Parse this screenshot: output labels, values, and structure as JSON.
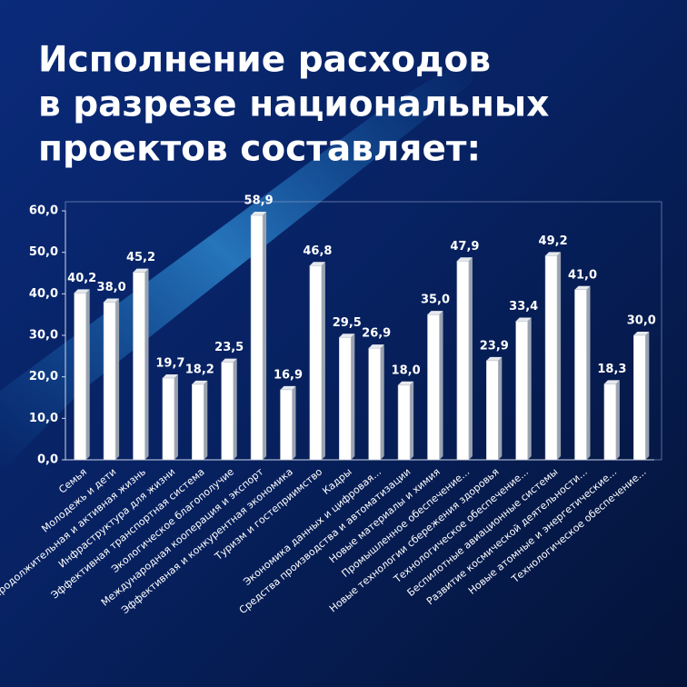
{
  "chart_data": {
    "type": "bar",
    "title": [
      "Исполнение расходов",
      "в разрезе национальных",
      "проектов составляет:"
    ],
    "categories": [
      "Семья",
      "Молодежь и дети",
      "Продолжительная и активная жизнь",
      "Инфраструктура для жизни",
      "Эффективная транспортная система",
      "Экологическое благополучие",
      "Международная кооперация и экспорт",
      "Эффективная и конкурентная экономика",
      "Туризм и гостеприимство",
      "Кадры",
      "Экономика данных и цифровая...",
      "Средства производства и автоматизации",
      "Новые материалы и химия",
      "Промышленное обеспечение...",
      "Новые технологии сбережения здоровья",
      "Технологическое обеспечение...",
      "Беспилотные авиационные системы",
      "Развитие космической деятельности...",
      "Новые атомные и энергетические...",
      "Технологическое обеспечение..."
    ],
    "values": [
      40.2,
      38.0,
      45.2,
      19.7,
      18.2,
      23.5,
      58.9,
      16.9,
      46.8,
      29.5,
      26.9,
      18.0,
      35.0,
      47.9,
      23.9,
      33.4,
      49.2,
      41.0,
      18.3,
      30.0
    ],
    "value_labels": [
      "40,2",
      "38,0",
      "45,2",
      "19,7",
      "18,2",
      "23,5",
      "58,9",
      "16,9",
      "46,8",
      "29,5",
      "26,9",
      "18,0",
      "35,0",
      "47,9",
      "23,9",
      "33,4",
      "49,2",
      "41,0",
      "18,3",
      "30,0"
    ],
    "color": "#ffffff",
    "ylim": [
      0,
      60
    ],
    "yticks": [
      {
        "value": 0,
        "label": "0,0"
      },
      {
        "value": 10,
        "label": "10,0"
      },
      {
        "value": 20,
        "label": "20,0"
      },
      {
        "value": 30,
        "label": "30,0"
      },
      {
        "value": 40,
        "label": "40,0"
      },
      {
        "value": 50,
        "label": "50,0"
      },
      {
        "value": 60,
        "label": "60,0"
      }
    ]
  }
}
